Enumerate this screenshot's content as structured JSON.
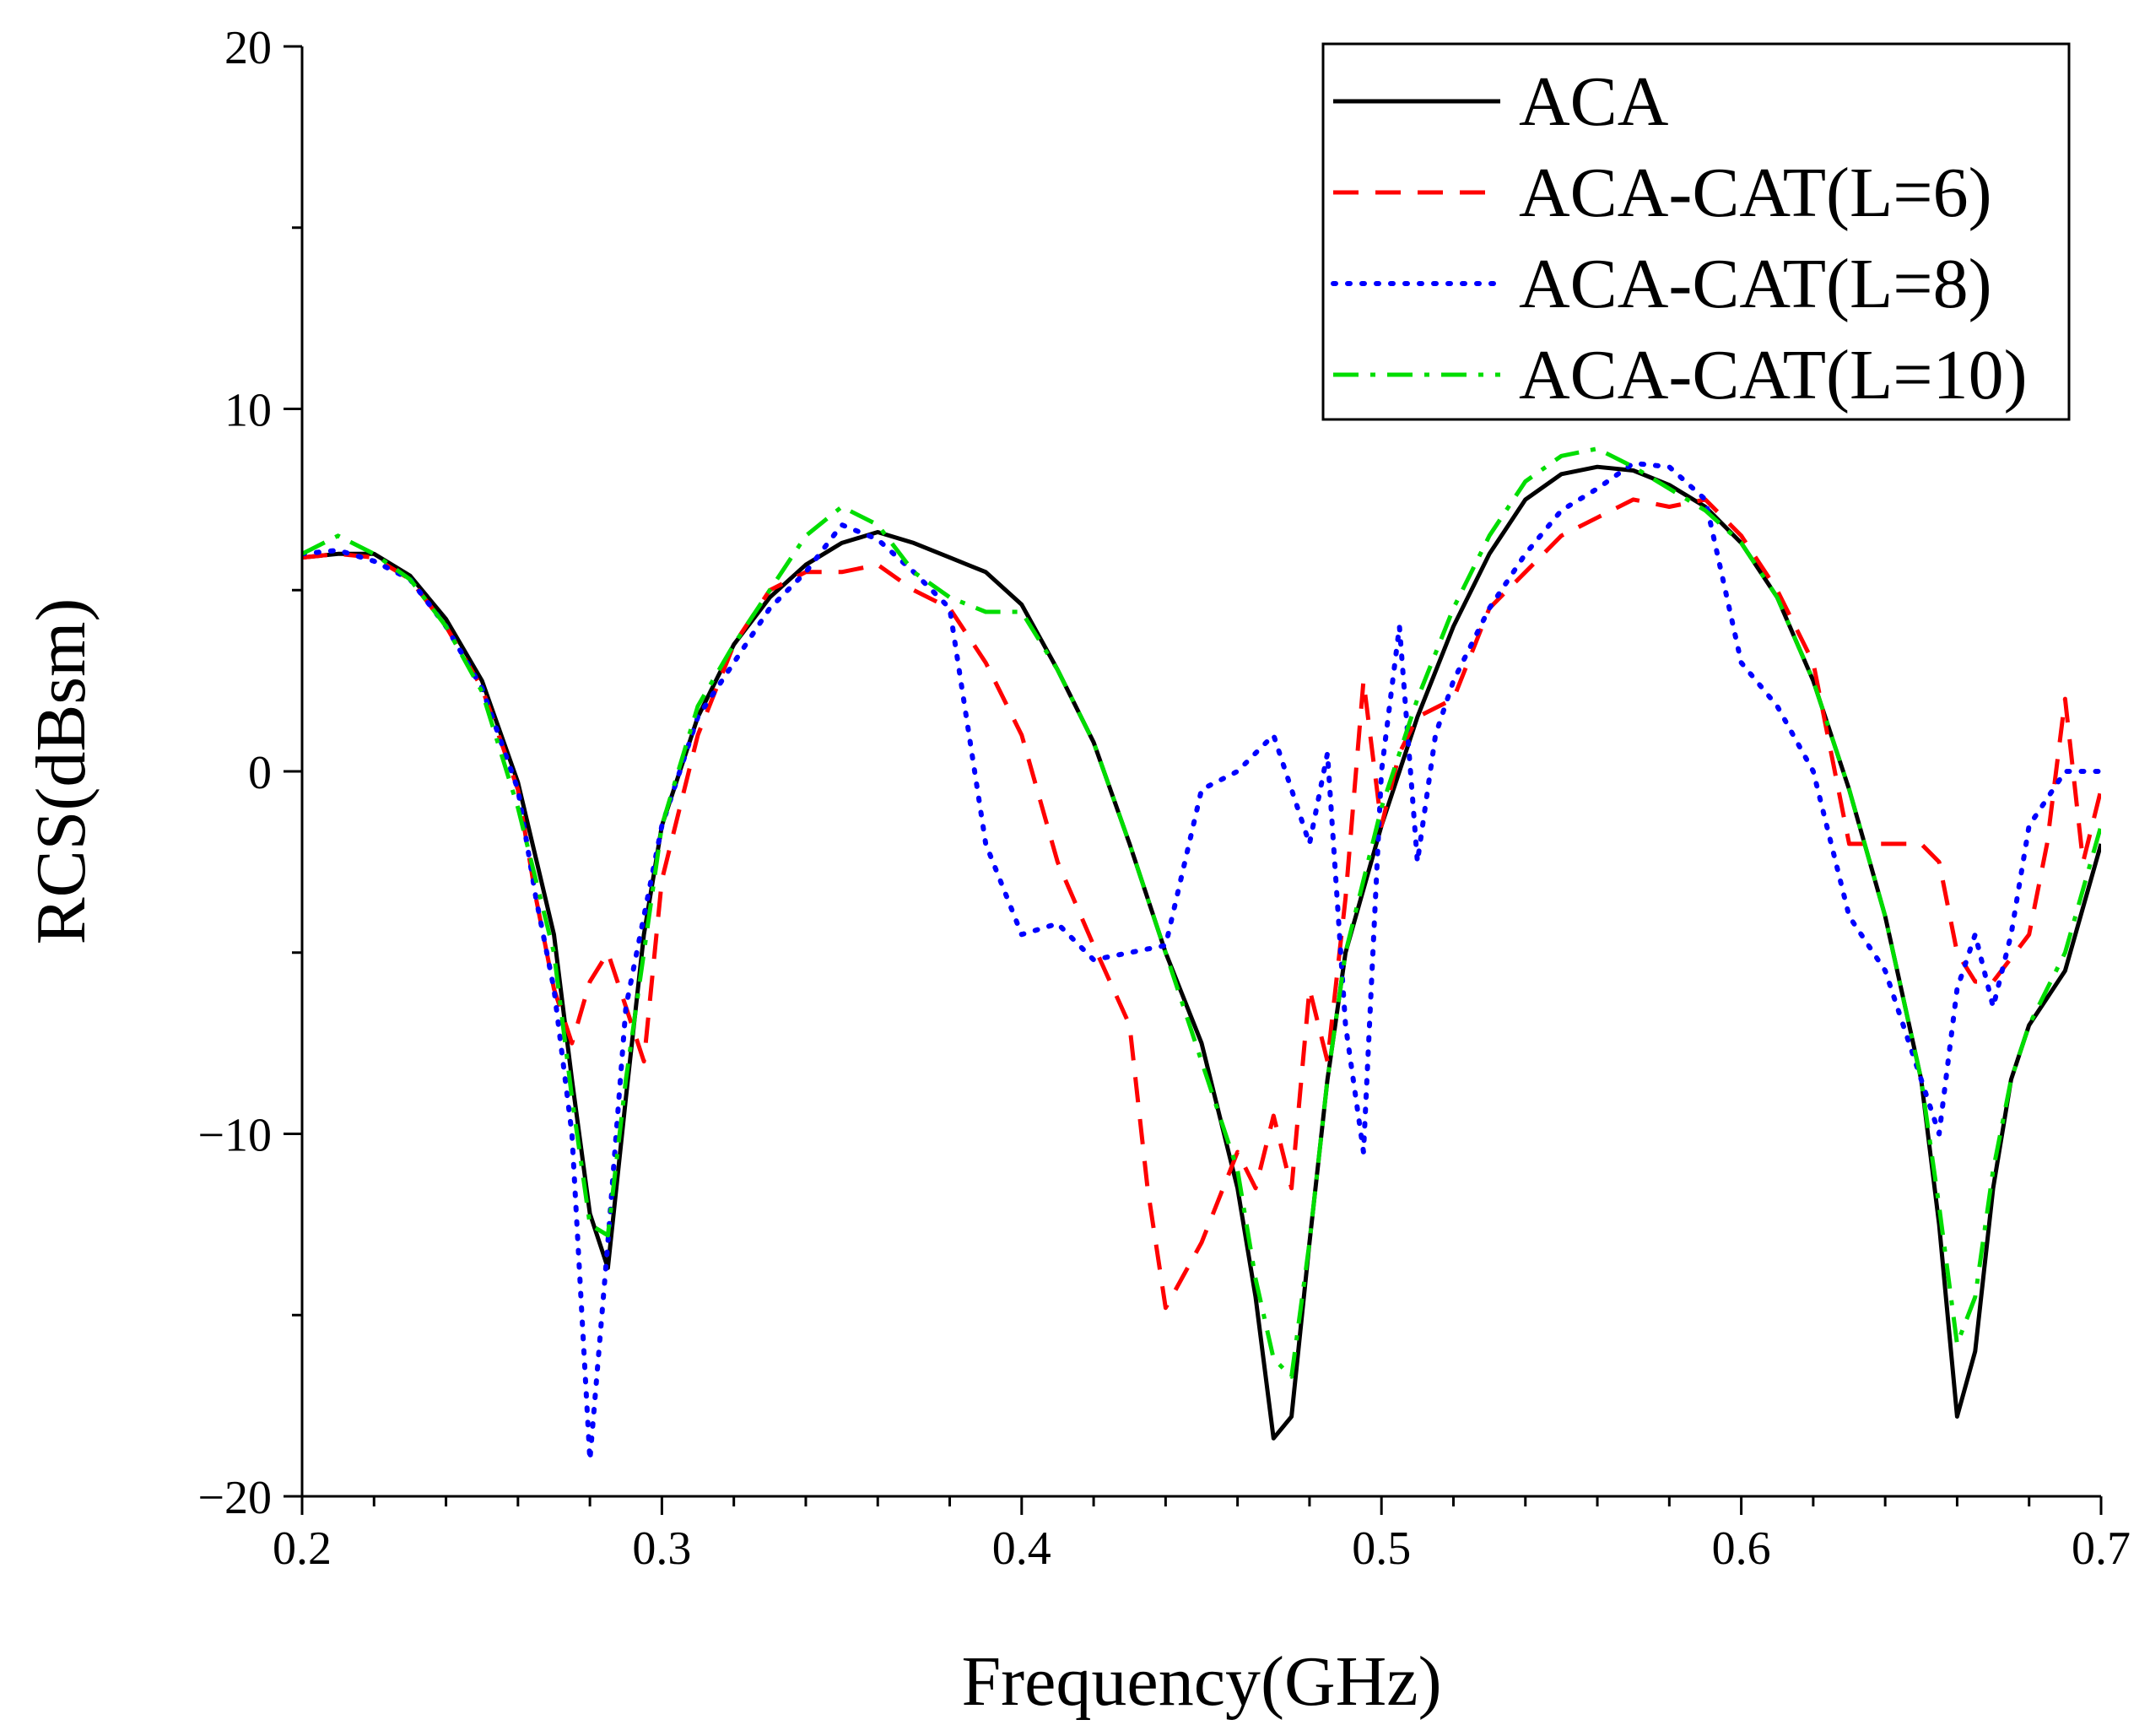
{
  "chart_data": {
    "type": "line",
    "title": "",
    "xlabel": "Frequency(GHz)",
    "ylabel": "RCS(dBsm)",
    "xlim": [
      0.2,
      0.7
    ],
    "ylim": [
      -20,
      20
    ],
    "xticks": [
      0.2,
      0.3,
      0.4,
      0.5,
      0.6,
      0.7
    ],
    "xtick_labels": [
      "0.2",
      "0.3",
      "0.4",
      "0.5",
      "0.6",
      "0.7"
    ],
    "yticks": [
      -20,
      -10,
      0,
      10,
      20
    ],
    "ytick_labels": [
      "−20",
      "−10",
      "0",
      "10",
      "20"
    ],
    "grid": false,
    "legend_position": "top-right",
    "series": [
      {
        "name": "ACA",
        "color": "#000000",
        "dash": "solid",
        "points": [
          [
            0.2,
            5.9
          ],
          [
            0.21,
            6.0
          ],
          [
            0.22,
            6.0
          ],
          [
            0.23,
            5.4
          ],
          [
            0.24,
            4.2
          ],
          [
            0.25,
            2.5
          ],
          [
            0.26,
            -0.3
          ],
          [
            0.27,
            -4.5
          ],
          [
            0.275,
            -8.5
          ],
          [
            0.28,
            -12.2
          ],
          [
            0.285,
            -13.7
          ],
          [
            0.29,
            -9.0
          ],
          [
            0.295,
            -4.5
          ],
          [
            0.3,
            -1.5
          ],
          [
            0.31,
            1.5
          ],
          [
            0.32,
            3.5
          ],
          [
            0.33,
            4.8
          ],
          [
            0.34,
            5.7
          ],
          [
            0.35,
            6.3
          ],
          [
            0.36,
            6.6
          ],
          [
            0.37,
            6.3
          ],
          [
            0.38,
            5.9
          ],
          [
            0.39,
            5.5
          ],
          [
            0.4,
            4.6
          ],
          [
            0.41,
            2.8
          ],
          [
            0.42,
            0.8
          ],
          [
            0.43,
            -2.0
          ],
          [
            0.44,
            -5.0
          ],
          [
            0.45,
            -7.5
          ],
          [
            0.455,
            -9.5
          ],
          [
            0.46,
            -11.5
          ],
          [
            0.465,
            -14.5
          ],
          [
            0.47,
            -18.4
          ],
          [
            0.475,
            -17.8
          ],
          [
            0.48,
            -13.0
          ],
          [
            0.485,
            -8.5
          ],
          [
            0.49,
            -5.0
          ],
          [
            0.5,
            -1.5
          ],
          [
            0.51,
            1.5
          ],
          [
            0.52,
            4.0
          ],
          [
            0.53,
            6.0
          ],
          [
            0.54,
            7.5
          ],
          [
            0.55,
            8.2
          ],
          [
            0.56,
            8.4
          ],
          [
            0.57,
            8.3
          ],
          [
            0.58,
            7.9
          ],
          [
            0.59,
            7.3
          ],
          [
            0.6,
            6.3
          ],
          [
            0.61,
            4.8
          ],
          [
            0.62,
            2.5
          ],
          [
            0.63,
            -0.5
          ],
          [
            0.64,
            -4.0
          ],
          [
            0.65,
            -8.5
          ],
          [
            0.655,
            -12.5
          ],
          [
            0.66,
            -17.8
          ],
          [
            0.665,
            -16.0
          ],
          [
            0.67,
            -11.5
          ],
          [
            0.675,
            -8.5
          ],
          [
            0.68,
            -7.0
          ],
          [
            0.69,
            -5.5
          ],
          [
            0.7,
            -2.0
          ]
        ]
      },
      {
        "name": "ACA-CAT(L=6)",
        "color": "#ff0000",
        "dash": "dashed",
        "points": [
          [
            0.2,
            5.9
          ],
          [
            0.21,
            6.0
          ],
          [
            0.22,
            5.9
          ],
          [
            0.23,
            5.3
          ],
          [
            0.24,
            4.0
          ],
          [
            0.25,
            2.3
          ],
          [
            0.26,
            -0.5
          ],
          [
            0.265,
            -3.5
          ],
          [
            0.27,
            -6.0
          ],
          [
            0.275,
            -7.5
          ],
          [
            0.28,
            -5.8
          ],
          [
            0.285,
            -5.0
          ],
          [
            0.29,
            -6.5
          ],
          [
            0.295,
            -8.0
          ],
          [
            0.3,
            -3.0
          ],
          [
            0.31,
            1.0
          ],
          [
            0.32,
            3.5
          ],
          [
            0.33,
            5.0
          ],
          [
            0.34,
            5.5
          ],
          [
            0.35,
            5.5
          ],
          [
            0.36,
            5.7
          ],
          [
            0.37,
            5.0
          ],
          [
            0.38,
            4.5
          ],
          [
            0.39,
            3.0
          ],
          [
            0.4,
            1.0
          ],
          [
            0.41,
            -2.5
          ],
          [
            0.42,
            -4.8
          ],
          [
            0.43,
            -7.0
          ],
          [
            0.435,
            -11.5
          ],
          [
            0.44,
            -14.8
          ],
          [
            0.45,
            -13.0
          ],
          [
            0.46,
            -10.5
          ],
          [
            0.465,
            -11.5
          ],
          [
            0.47,
            -9.5
          ],
          [
            0.475,
            -11.5
          ],
          [
            0.48,
            -6.0
          ],
          [
            0.485,
            -8.0
          ],
          [
            0.49,
            -3.5
          ],
          [
            0.495,
            2.5
          ],
          [
            0.5,
            -1.5
          ],
          [
            0.505,
            0.5
          ],
          [
            0.51,
            1.5
          ],
          [
            0.52,
            2.0
          ],
          [
            0.53,
            4.5
          ],
          [
            0.54,
            5.5
          ],
          [
            0.55,
            6.5
          ],
          [
            0.56,
            7.0
          ],
          [
            0.57,
            7.5
          ],
          [
            0.58,
            7.3
          ],
          [
            0.59,
            7.5
          ],
          [
            0.6,
            6.5
          ],
          [
            0.61,
            5.0
          ],
          [
            0.62,
            3.0
          ],
          [
            0.63,
            -2.0
          ],
          [
            0.64,
            -2.0
          ],
          [
            0.65,
            -2.0
          ],
          [
            0.655,
            -2.5
          ],
          [
            0.66,
            -5.0
          ],
          [
            0.665,
            -5.8
          ],
          [
            0.67,
            -5.8
          ],
          [
            0.68,
            -4.5
          ],
          [
            0.685,
            -2.0
          ],
          [
            0.69,
            2.0
          ],
          [
            0.695,
            -2.5
          ],
          [
            0.7,
            -0.5
          ]
        ]
      },
      {
        "name": "ACA-CAT(L=8)",
        "color": "#0000ff",
        "dash": "dotted",
        "points": [
          [
            0.2,
            6.0
          ],
          [
            0.21,
            6.1
          ],
          [
            0.22,
            5.8
          ],
          [
            0.23,
            5.3
          ],
          [
            0.24,
            4.0
          ],
          [
            0.25,
            2.3
          ],
          [
            0.26,
            -0.5
          ],
          [
            0.265,
            -3.5
          ],
          [
            0.27,
            -6.0
          ],
          [
            0.275,
            -10.0
          ],
          [
            0.28,
            -19.0
          ],
          [
            0.285,
            -13.0
          ],
          [
            0.29,
            -6.5
          ],
          [
            0.3,
            -1.5
          ],
          [
            0.31,
            1.5
          ],
          [
            0.32,
            3.0
          ],
          [
            0.33,
            4.5
          ],
          [
            0.34,
            5.5
          ],
          [
            0.35,
            6.8
          ],
          [
            0.36,
            6.4
          ],
          [
            0.37,
            5.5
          ],
          [
            0.38,
            4.5
          ],
          [
            0.39,
            -2.0
          ],
          [
            0.4,
            -4.5
          ],
          [
            0.41,
            -4.2
          ],
          [
            0.42,
            -5.2
          ],
          [
            0.43,
            -5.0
          ],
          [
            0.44,
            -4.8
          ],
          [
            0.45,
            -0.5
          ],
          [
            0.46,
            0.0
          ],
          [
            0.47,
            1.0
          ],
          [
            0.48,
            -2.0
          ],
          [
            0.485,
            0.5
          ],
          [
            0.49,
            -7.0
          ],
          [
            0.495,
            -10.5
          ],
          [
            0.5,
            0.0
          ],
          [
            0.505,
            4.0
          ],
          [
            0.51,
            -2.5
          ],
          [
            0.515,
            1.0
          ],
          [
            0.52,
            2.5
          ],
          [
            0.53,
            4.5
          ],
          [
            0.54,
            6.0
          ],
          [
            0.55,
            7.2
          ],
          [
            0.56,
            7.8
          ],
          [
            0.57,
            8.5
          ],
          [
            0.58,
            8.4
          ],
          [
            0.59,
            7.5
          ],
          [
            0.6,
            3.0
          ],
          [
            0.61,
            1.8
          ],
          [
            0.62,
            0.0
          ],
          [
            0.63,
            -4.0
          ],
          [
            0.64,
            -5.5
          ],
          [
            0.65,
            -8.5
          ],
          [
            0.655,
            -10.0
          ],
          [
            0.66,
            -6.0
          ],
          [
            0.665,
            -4.5
          ],
          [
            0.67,
            -6.5
          ],
          [
            0.675,
            -4.5
          ],
          [
            0.68,
            -1.5
          ],
          [
            0.69,
            0.0
          ],
          [
            0.7,
            0.0
          ]
        ]
      },
      {
        "name": "ACA-CAT(L=10)",
        "color": "#00dd00",
        "dash": "dashdot",
        "points": [
          [
            0.2,
            6.0
          ],
          [
            0.21,
            6.5
          ],
          [
            0.22,
            6.0
          ],
          [
            0.23,
            5.3
          ],
          [
            0.24,
            4.0
          ],
          [
            0.25,
            2.2
          ],
          [
            0.26,
            -1.0
          ],
          [
            0.27,
            -5.0
          ],
          [
            0.275,
            -9.0
          ],
          [
            0.28,
            -12.5
          ],
          [
            0.285,
            -12.8
          ],
          [
            0.29,
            -8.5
          ],
          [
            0.3,
            -1.5
          ],
          [
            0.31,
            1.8
          ],
          [
            0.32,
            3.5
          ],
          [
            0.33,
            5.0
          ],
          [
            0.34,
            6.5
          ],
          [
            0.35,
            7.3
          ],
          [
            0.36,
            6.8
          ],
          [
            0.37,
            5.5
          ],
          [
            0.38,
            4.8
          ],
          [
            0.39,
            4.4
          ],
          [
            0.4,
            4.4
          ],
          [
            0.41,
            2.8
          ],
          [
            0.42,
            0.8
          ],
          [
            0.43,
            -2.0
          ],
          [
            0.44,
            -5.0
          ],
          [
            0.45,
            -8.0
          ],
          [
            0.46,
            -11.0
          ],
          [
            0.465,
            -14.0
          ],
          [
            0.47,
            -16.2
          ],
          [
            0.475,
            -16.7
          ],
          [
            0.48,
            -13.0
          ],
          [
            0.485,
            -8.5
          ],
          [
            0.49,
            -5.0
          ],
          [
            0.5,
            -1.0
          ],
          [
            0.51,
            2.0
          ],
          [
            0.52,
            4.5
          ],
          [
            0.53,
            6.5
          ],
          [
            0.54,
            8.0
          ],
          [
            0.55,
            8.7
          ],
          [
            0.56,
            8.9
          ],
          [
            0.57,
            8.4
          ],
          [
            0.58,
            7.8
          ],
          [
            0.59,
            7.2
          ],
          [
            0.6,
            6.3
          ],
          [
            0.61,
            4.8
          ],
          [
            0.62,
            2.5
          ],
          [
            0.63,
            -0.5
          ],
          [
            0.64,
            -4.0
          ],
          [
            0.65,
            -8.5
          ],
          [
            0.655,
            -12.0
          ],
          [
            0.66,
            -15.8
          ],
          [
            0.665,
            -14.5
          ],
          [
            0.67,
            -11.0
          ],
          [
            0.675,
            -8.5
          ],
          [
            0.68,
            -7.0
          ],
          [
            0.69,
            -5.0
          ],
          [
            0.7,
            -1.5
          ]
        ]
      }
    ]
  }
}
